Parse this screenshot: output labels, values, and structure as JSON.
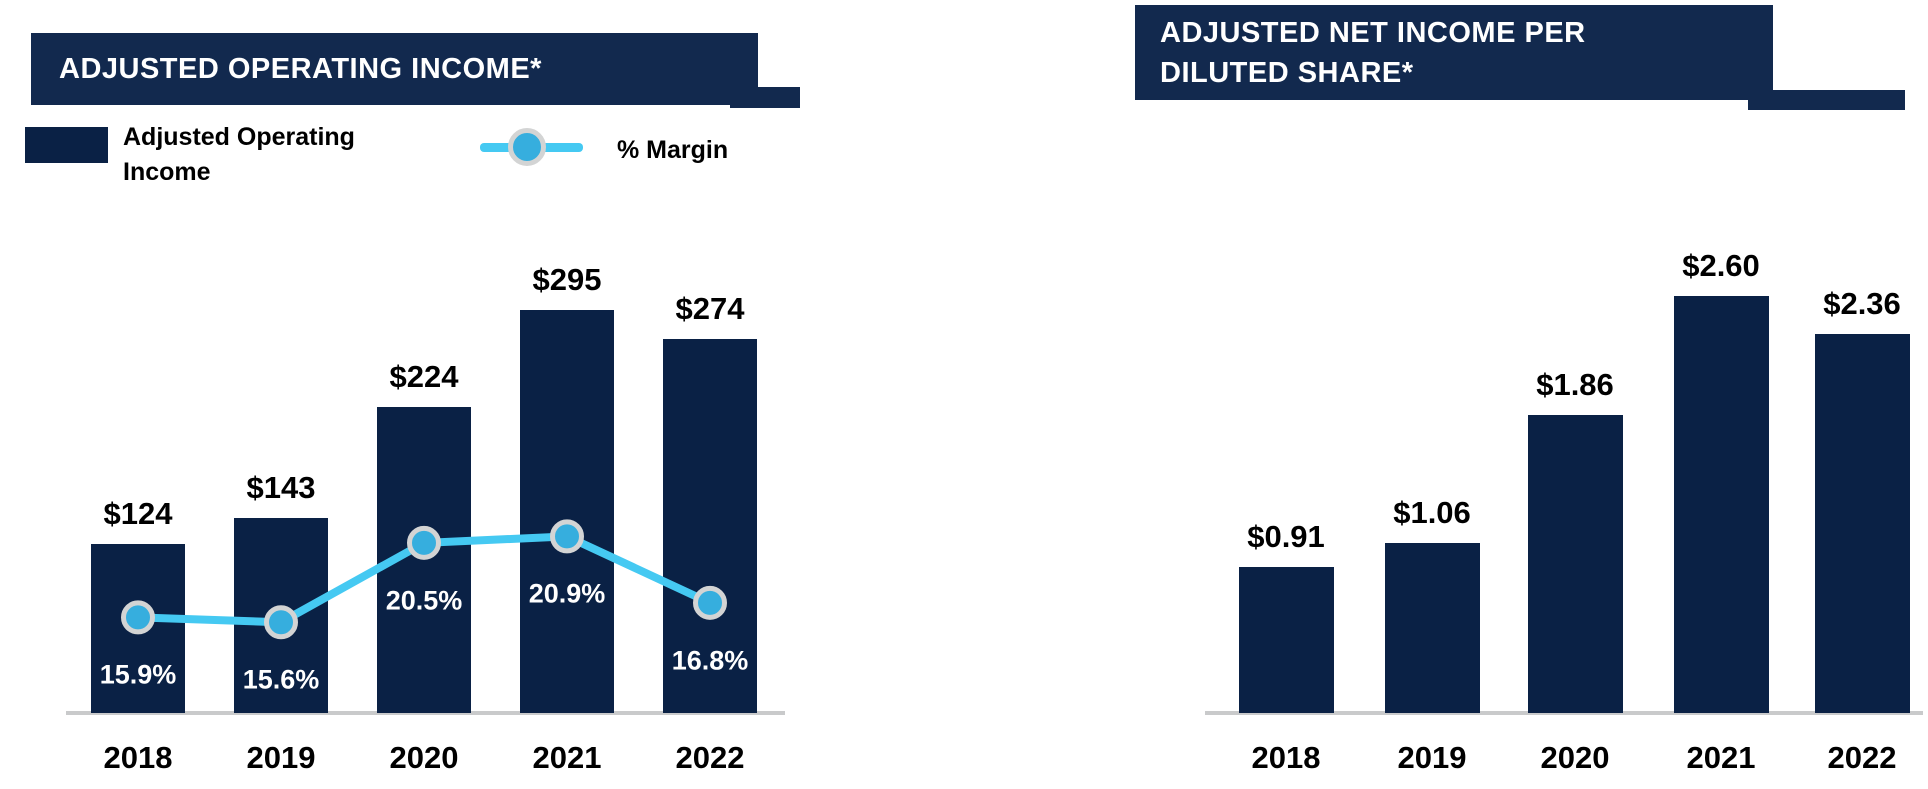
{
  "ui": {
    "charts": [
      {
        "title": "ADJUSTED OPERATING INCOME*",
        "legend": [
          {
            "label": "Adjusted Operating Income",
            "swatch": "bar-swatch"
          },
          {
            "label": "% Margin",
            "swatch": "line-marker-swatch"
          }
        ]
      },
      {
        "title": "ADJUSTED NET INCOME PER DILUTED SHARE*",
        "legend": []
      }
    ]
  },
  "colors": {
    "navy_bar": "#0a2145",
    "navy_title_box": "#12294e",
    "line_cyan": "#45c9f2",
    "marker_fill": "#36aede",
    "marker_ring": "#d3d4d4",
    "axis_gray": "#c9cacb",
    "label_black": "#000000",
    "label_white": "#ffffff"
  },
  "chart_data": [
    {
      "type": "bar",
      "title": "ADJUSTED OPERATING INCOME*",
      "categories": [
        "2018",
        "2019",
        "2020",
        "2021",
        "2022"
      ],
      "series": [
        {
          "name": "Adjusted Operating Income",
          "type": "bar",
          "values": [
            124,
            143,
            224,
            295,
            274
          ],
          "labels": [
            "$124",
            "$143",
            "$224",
            "$295",
            "$274"
          ]
        },
        {
          "name": "% Margin",
          "type": "line",
          "values": [
            15.9,
            15.6,
            20.5,
            20.9,
            16.8
          ],
          "labels": [
            "15.9%",
            "15.6%",
            "20.5%",
            "20.9%",
            "16.8%"
          ]
        }
      ],
      "xlabel": "",
      "ylabel": "",
      "y_axis_visible": false,
      "gridlines": false,
      "legend_position": "top-left",
      "bar_value_labels_position": "above-bar",
      "line_value_labels_position": "below-marker-inside-bar"
    },
    {
      "type": "bar",
      "title": "ADJUSTED NET INCOME PER DILUTED SHARE*",
      "categories": [
        "2018",
        "2019",
        "2020",
        "2021",
        "2022"
      ],
      "series": [
        {
          "name": "Adjusted Net Income Per Diluted Share",
          "type": "bar",
          "values": [
            0.91,
            1.06,
            1.86,
            2.6,
            2.36
          ],
          "labels": [
            "$0.91",
            "$1.06",
            "$1.86",
            "$2.60",
            "$2.36"
          ]
        }
      ],
      "xlabel": "",
      "ylabel": "",
      "y_axis_visible": false,
      "gridlines": false,
      "legend_position": "none",
      "bar_value_labels_position": "above-bar"
    }
  ]
}
